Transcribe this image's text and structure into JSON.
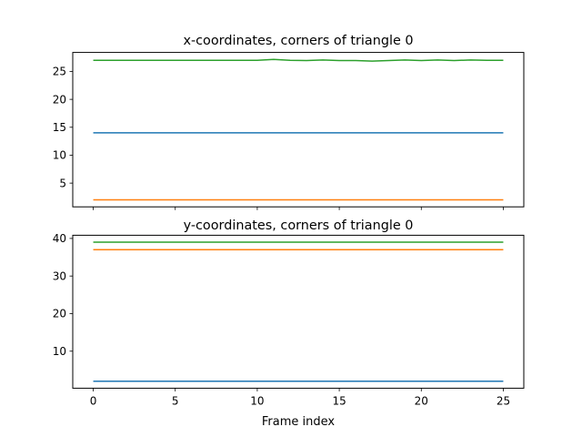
{
  "chart_data": [
    {
      "type": "line",
      "title": "x-coordinates, corners of triangle 0",
      "xlabel": "",
      "ylabel": "",
      "xlim": [
        -1.25,
        26.25
      ],
      "ylim": [
        0.75,
        28.4
      ],
      "x_ticks": [
        0,
        5,
        10,
        15,
        20,
        25
      ],
      "x_tick_labels_visible": false,
      "y_ticks": [
        5,
        10,
        15,
        20,
        25
      ],
      "grid": false,
      "x": [
        0,
        1,
        2,
        3,
        4,
        5,
        6,
        7,
        8,
        9,
        10,
        11,
        12,
        13,
        14,
        15,
        16,
        17,
        18,
        19,
        20,
        21,
        22,
        23,
        24,
        25
      ],
      "series": [
        {
          "color": "#1f77b4",
          "values": [
            14,
            14,
            14,
            14,
            14,
            14,
            14,
            14,
            14,
            14,
            14,
            14,
            14,
            14,
            14,
            14,
            14,
            14,
            14,
            14,
            14,
            14,
            14,
            14,
            14,
            14
          ]
        },
        {
          "color": "#ff7f0e",
          "values": [
            2,
            2,
            2,
            2,
            2,
            2,
            2,
            2,
            2,
            2,
            2,
            2,
            2,
            2,
            2,
            2,
            2,
            2,
            2,
            2,
            2,
            2,
            2,
            2,
            2,
            2
          ]
        },
        {
          "color": "#2ca02c",
          "values": [
            27,
            27,
            27,
            27,
            27,
            27,
            27,
            27,
            27,
            27,
            27,
            27.15,
            27,
            26.95,
            27.05,
            26.95,
            26.95,
            26.85,
            26.95,
            27.05,
            26.95,
            27.05,
            26.95,
            27.05,
            27,
            27
          ]
        }
      ]
    },
    {
      "type": "line",
      "title": "y-coordinates, corners of triangle 0",
      "xlabel": "Frame index",
      "ylabel": "",
      "xlim": [
        -1.25,
        26.25
      ],
      "ylim": [
        0.15,
        40.85
      ],
      "x_ticks": [
        0,
        5,
        10,
        15,
        20,
        25
      ],
      "x_tick_labels_visible": true,
      "y_ticks": [
        10,
        20,
        30,
        40
      ],
      "grid": false,
      "x": [
        0,
        1,
        2,
        3,
        4,
        5,
        6,
        7,
        8,
        9,
        10,
        11,
        12,
        13,
        14,
        15,
        16,
        17,
        18,
        19,
        20,
        21,
        22,
        23,
        24,
        25
      ],
      "series": [
        {
          "color": "#1f77b4",
          "values": [
            2,
            2,
            2,
            2,
            2,
            2,
            2,
            2,
            2,
            2,
            2,
            2,
            2,
            2,
            2,
            2,
            2,
            2,
            2,
            2,
            2,
            2,
            2,
            2,
            2,
            2
          ]
        },
        {
          "color": "#ff7f0e",
          "values": [
            37,
            37,
            37,
            37,
            37,
            37,
            37,
            37,
            37,
            37,
            37,
            37,
            37,
            37,
            37,
            37,
            37,
            37,
            37,
            37,
            37,
            37,
            37,
            37,
            37,
            37
          ]
        },
        {
          "color": "#2ca02c",
          "values": [
            39,
            39,
            39,
            39,
            39,
            39,
            39,
            39,
            39,
            39,
            39,
            39,
            39,
            39,
            39,
            39,
            39,
            39,
            39,
            39,
            39,
            39,
            39,
            39,
            39,
            39
          ]
        }
      ]
    }
  ]
}
